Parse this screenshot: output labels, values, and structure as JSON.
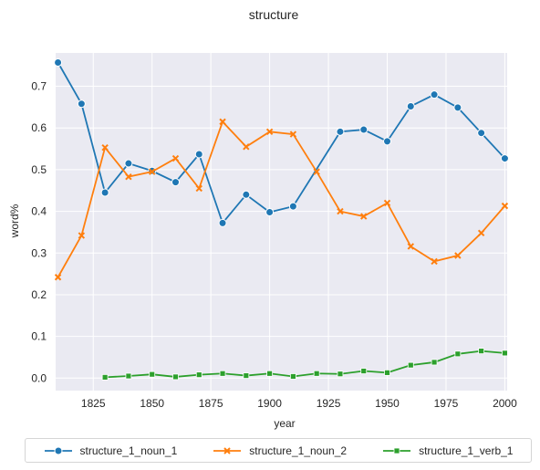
{
  "chart_data": {
    "type": "line",
    "title": "structure",
    "xlabel": "year",
    "ylabel": "word%",
    "xlim": [
      1809,
      2001
    ],
    "ylim": [
      -0.03,
      0.78
    ],
    "xticks": [
      1825,
      1850,
      1875,
      1900,
      1925,
      1950,
      1975,
      2000
    ],
    "yticks": [
      0.0,
      0.1,
      0.2,
      0.3,
      0.4,
      0.5,
      0.6,
      0.7
    ],
    "grid": true,
    "legend_position": "bottom",
    "series": [
      {
        "name": "structure_1_noun_1",
        "color": "#1f77b4",
        "marker": "circle",
        "x": [
          1810,
          1820,
          1830,
          1840,
          1850,
          1860,
          1870,
          1880,
          1890,
          1900,
          1910,
          1930,
          1940,
          1950,
          1960,
          1970,
          1980,
          1990,
          2000
        ],
        "y": [
          0.757,
          0.658,
          0.445,
          0.515,
          0.497,
          0.47,
          0.537,
          0.372,
          0.44,
          0.398,
          0.412,
          0.591,
          0.596,
          0.568,
          0.652,
          0.68,
          0.649,
          0.588,
          0.527
        ]
      },
      {
        "name": "structure_1_noun_2",
        "color": "#ff7f0e",
        "marker": "x",
        "x": [
          1810,
          1820,
          1830,
          1840,
          1850,
          1860,
          1870,
          1880,
          1890,
          1900,
          1910,
          1920,
          1930,
          1940,
          1950,
          1960,
          1970,
          1980,
          1990,
          2000
        ],
        "y": [
          0.242,
          0.342,
          0.553,
          0.483,
          0.495,
          0.527,
          0.455,
          0.615,
          0.555,
          0.591,
          0.585,
          0.495,
          0.4,
          0.388,
          0.42,
          0.316,
          0.28,
          0.294,
          0.348,
          0.413
        ]
      },
      {
        "name": "structure_1_verb_1",
        "color": "#2ca02c",
        "marker": "square",
        "x": [
          1830,
          1840,
          1850,
          1860,
          1870,
          1880,
          1890,
          1900,
          1910,
          1920,
          1930,
          1940,
          1950,
          1960,
          1970,
          1980,
          1990,
          2000
        ],
        "y": [
          0.002,
          0.005,
          0.009,
          0.003,
          0.008,
          0.011,
          0.006,
          0.011,
          0.004,
          0.011,
          0.01,
          0.017,
          0.013,
          0.031,
          0.038,
          0.058,
          0.065,
          0.06
        ]
      }
    ]
  }
}
